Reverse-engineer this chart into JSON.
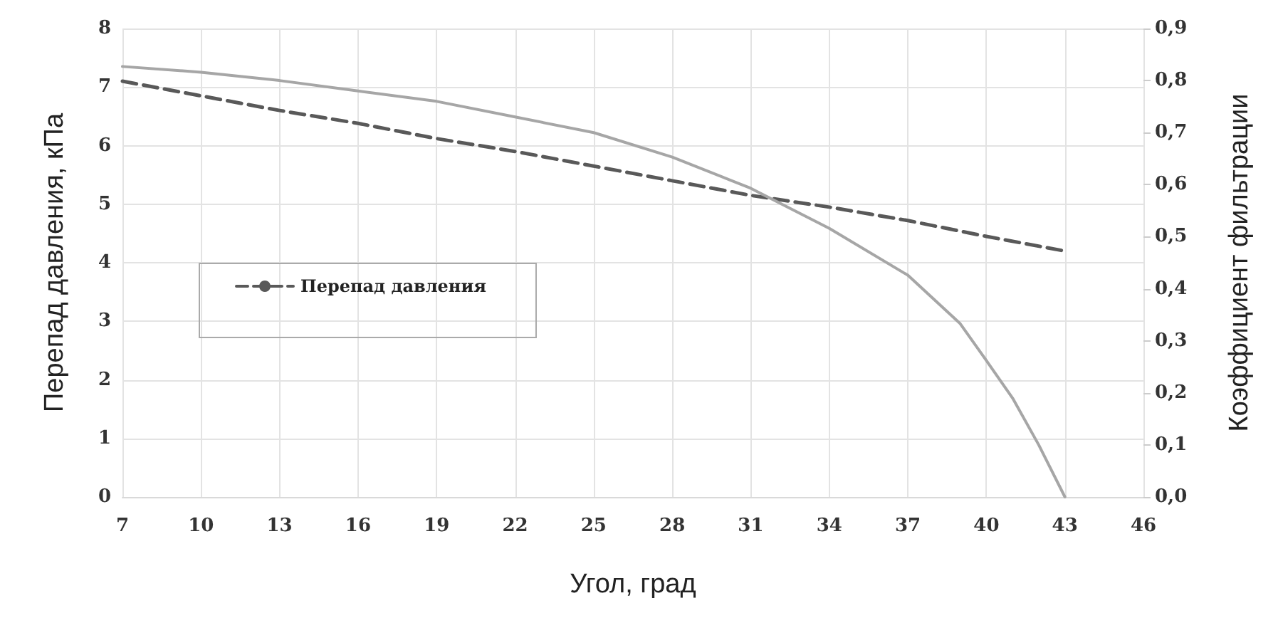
{
  "chart_data": {
    "type": "line",
    "xlabel": "Угол, град",
    "ylabel": "Перепад давления, кПа",
    "y2label": "Коэффициент фильтрации",
    "x": [
      7,
      10,
      13,
      16,
      19,
      22,
      25,
      28,
      31,
      34,
      37,
      40,
      43
    ],
    "series": [
      {
        "name": "Перепад давления",
        "color": "#595959",
        "line_style": "dashed",
        "values": [
          7.1,
          6.85,
          6.6,
          6.38,
          6.12,
          5.9,
          5.65,
          5.4,
          5.15,
          4.95,
          4.72,
          4.45,
          4.2
        ]
      },
      {
        "color": "#a6a6a6",
        "line_style": "solid",
        "axis": "y2",
        "x": [
          7,
          10,
          13,
          16,
          19,
          22,
          25,
          28,
          31,
          34,
          37,
          39,
          40,
          41,
          42,
          43
        ],
        "values": [
          0.827,
          0.816,
          0.8,
          0.78,
          0.76,
          0.73,
          0.7,
          0.653,
          0.593,
          0.516,
          0.426,
          0.333,
          0.262,
          0.19,
          0.1,
          0
        ]
      }
    ],
    "xlim": [
      7,
      46
    ],
    "xticks": [
      7,
      10,
      13,
      16,
      19,
      22,
      25,
      28,
      31,
      34,
      37,
      40,
      43,
      46
    ],
    "ylim": [
      0,
      8
    ],
    "yticks": [
      0,
      1,
      2,
      3,
      4,
      5,
      6,
      7,
      8
    ],
    "y2lim": [
      0,
      0.9
    ],
    "y2ticks": [
      {
        "value": 0,
        "label": "0,0"
      },
      {
        "value": 0.1,
        "label": "0,1"
      },
      {
        "value": 0.2,
        "label": "0,2"
      },
      {
        "value": 0.3,
        "label": "0,3"
      },
      {
        "value": 0.4,
        "label": "0,4"
      },
      {
        "value": 0.5,
        "label": "0,5"
      },
      {
        "value": 0.6,
        "label": "0,6"
      },
      {
        "value": 0.7,
        "label": "0,7"
      },
      {
        "value": 0.8,
        "label": "0,8"
      },
      {
        "value": 0.9,
        "label": "0,9"
      }
    ],
    "grid": true,
    "legend": "left",
    "marker": "none"
  }
}
